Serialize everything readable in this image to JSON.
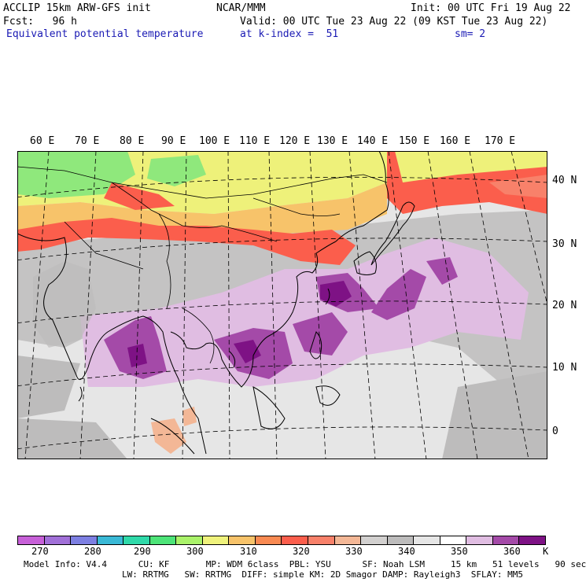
{
  "header": {
    "model_line": "ACCLIP 15km ARW-GFS init",
    "center_line": "NCAR/MMM",
    "init_line": "Init: 00 UTC Fri 19 Aug 22",
    "fcst_line": "Fcst:   96 h",
    "valid_line": "Valid: 00 UTC Tue 23 Aug 22 (09 KST Tue 23 Aug 22)",
    "field_name": "Equivalent potential temperature",
    "level_text": "at k-index =  51",
    "smooth_text": "sm= 2"
  },
  "longitude_labels": [
    "60 E",
    "70 E",
    "80 E",
    "90 E",
    "100 E",
    "110 E",
    "120 E",
    "130 E",
    "140 E",
    "150 E",
    "160 E",
    "170 E"
  ],
  "latitude_labels": [
    "40 N",
    "30 N",
    "20 N",
    "10 N",
    "0"
  ],
  "legend": {
    "unit": "K",
    "ticks": [
      "270",
      "280",
      "290",
      "300",
      "310",
      "320",
      "330",
      "340",
      "350",
      "360"
    ],
    "colors": [
      "#c760d8",
      "#a170d8",
      "#7d7fe2",
      "#3ab9d6",
      "#2fd9a9",
      "#4de478",
      "#aaf26a",
      "#eff27c",
      "#f7c36a",
      "#f98a52",
      "#fb5e4c",
      "#f8816a",
      "#f3b796",
      "#d2d0cf",
      "#bdbcbc",
      "#e6e6e6",
      "#ffffff",
      "#e0bde2",
      "#a44aa8",
      "#7e1285"
    ]
  },
  "map_colors": {
    "warm_yellow": "#eef17a",
    "green": "#8fe87c",
    "orange": "#f7c36a",
    "red": "#fb5e4c",
    "salmon": "#f8816a",
    "gray": "#bdbcbc",
    "light_gray": "#e6e6e6",
    "light_purple": "#e0bde2",
    "purple": "#a44aa8",
    "dark_purple": "#7e1285"
  },
  "model_info": {
    "line1": "Model Info: V4.4      CU: KF       MP: WDM 6class  PBL: YSU      SF: Noah LSM     15 km   51 levels   90 sec",
    "line2": "LW: RRTMG   SW: RRTMG  DIFF: simple KM: 2D Smagor DAMP: Rayleigh3  SFLAY: MM5"
  }
}
